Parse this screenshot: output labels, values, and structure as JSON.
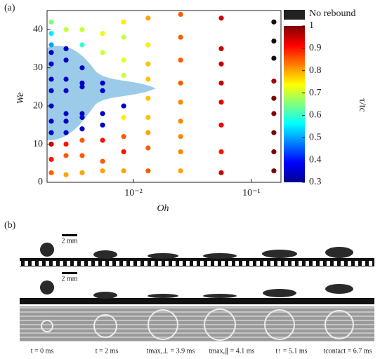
{
  "chart_data": {
    "type": "scatter",
    "panel_label": "(a)",
    "xlabel": "Oh",
    "ylabel": "We",
    "xscale": "log",
    "xlim": [
      0.00185,
      0.178
    ],
    "xticks": [
      {
        "value": 0.01,
        "label": "10⁻²"
      },
      {
        "value": 0.1,
        "label": "10⁻¹"
      }
    ],
    "ylim": [
      0,
      45
    ],
    "yticks": [
      0,
      10,
      20,
      30,
      40
    ],
    "x": [
      0.00201,
      0.00201,
      0.00201,
      0.00201,
      0.00201,
      0.00201,
      0.00201,
      0.00201,
      0.00201,
      0.00201,
      0.00201,
      0.00201,
      0.00201,
      0.00268,
      0.00268,
      0.00268,
      0.00268,
      0.00268,
      0.00268,
      0.00268,
      0.00268,
      0.00268,
      0.00268,
      0.00268,
      0.00367,
      0.00367,
      0.00367,
      0.00367,
      0.00367,
      0.00367,
      0.00367,
      0.00367,
      0.00367,
      0.00367,
      0.00367,
      0.00547,
      0.00547,
      0.00547,
      0.00547,
      0.00547,
      0.00547,
      0.00547,
      0.00547,
      0.00547,
      0.00826,
      0.00826,
      0.00826,
      0.00826,
      0.00826,
      0.00826,
      0.00826,
      0.00826,
      0.00826,
      0.0133,
      0.0133,
      0.0133,
      0.0133,
      0.0133,
      0.0133,
      0.0133,
      0.0133,
      0.0133,
      0.0251,
      0.0251,
      0.0251,
      0.0251,
      0.0251,
      0.0251,
      0.0251,
      0.0251,
      0.0251,
      0.0555,
      0.0555,
      0.0555,
      0.0555,
      0.0555,
      0.0555,
      0.0555,
      0.0555,
      0.155,
      0.155,
      0.155,
      0.155,
      0.155,
      0.155,
      0.155,
      0.155,
      0.155
    ],
    "y": [
      42,
      39,
      36,
      34,
      31,
      27,
      24,
      20,
      16,
      13,
      10,
      6,
      2.5,
      40,
      35,
      32,
      27,
      24,
      18,
      16,
      13,
      10,
      7,
      2,
      40,
      36,
      30,
      26,
      25,
      18,
      17,
      14,
      11,
      7,
      2.5,
      39,
      34,
      26,
      24,
      18,
      15,
      11,
      5.5,
      3,
      42,
      38,
      32,
      28,
      20,
      17,
      12,
      8,
      3,
      43,
      36,
      31,
      27,
      22,
      17,
      13,
      9,
      3,
      44,
      38,
      32,
      26,
      21,
      16,
      12,
      8,
      3,
      43,
      35,
      31,
      26,
      21,
      15,
      8,
      2.5,
      42,
      37,
      32.5,
      26.5,
      22,
      18,
      13,
      8,
      3
    ],
    "c": [
      0.65,
      0.55,
      0.5,
      0.35,
      0.35,
      0.35,
      0.35,
      0.35,
      0.35,
      0.35,
      0.95,
      0.9,
      0.85,
      0.7,
      0.35,
      0.35,
      0.35,
      0.35,
      0.35,
      0.35,
      0.35,
      0.9,
      0.85,
      0.8,
      0.7,
      0.6,
      0.35,
      0.35,
      0.35,
      0.35,
      0.35,
      0.35,
      0.85,
      0.85,
      0.8,
      0.72,
      0.7,
      0.35,
      0.35,
      0.35,
      0.35,
      0.9,
      0.85,
      0.8,
      0.75,
      0.7,
      0.72,
      0.7,
      0.35,
      0.75,
      0.85,
      0.9,
      0.8,
      0.8,
      0.75,
      0.78,
      0.78,
      0.78,
      0.78,
      0.8,
      0.85,
      0.85,
      0.85,
      0.85,
      0.85,
      0.85,
      0.82,
      0.82,
      0.82,
      0.82,
      0.8,
      0.95,
      0.95,
      0.95,
      0.95,
      0.93,
      0.92,
      0.9,
      0.95,
      null,
      null,
      null,
      0.97,
      1,
      1,
      1,
      1,
      1
    ],
    "colorbar": {
      "label": "τ/tc",
      "lim": [
        0.3,
        1
      ],
      "ticks": [
        0.3,
        0.4,
        0.5,
        0.6,
        0.7,
        0.8,
        0.9,
        1
      ],
      "null_label": "No rebound"
    }
  },
  "panel_b": {
    "label": "(b)",
    "scale_bars": [
      "2 mm",
      "2 mm"
    ],
    "times": [
      "t = 0 ms",
      "t = 2 ms",
      "tmax,⊥ = 3.9 ms",
      "tmax,∥ = 4.1 ms",
      "t↑ = 5.1 ms",
      "tcontact = 6.7 ms"
    ]
  }
}
